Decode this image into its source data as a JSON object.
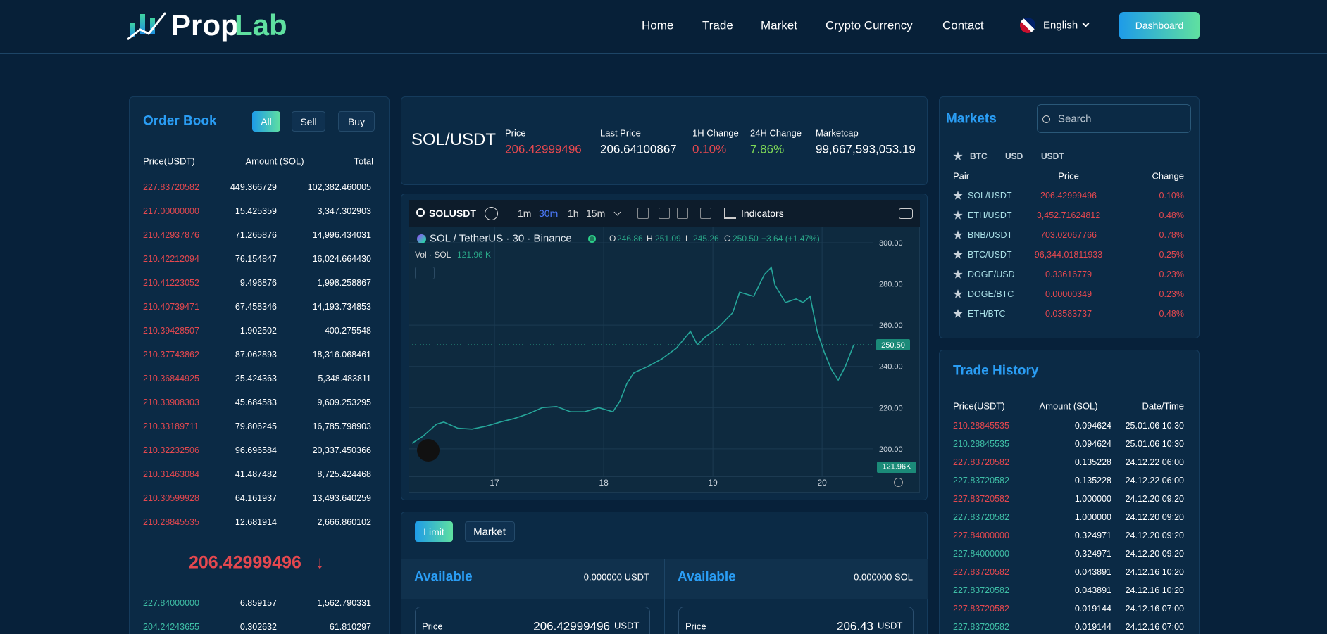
{
  "header": {
    "logo": [
      "Prop",
      "Lab"
    ],
    "nav": [
      "Home",
      "Trade",
      "Market",
      "Crypto Currency",
      "Contact"
    ],
    "language": "English",
    "button": "Dashboard"
  },
  "order_book": {
    "title": "Order Book",
    "filters": [
      "All",
      "Sell",
      "Buy"
    ],
    "columns": [
      "Price(USDT)",
      "Amount (SOL)",
      "Total"
    ],
    "asks": [
      [
        "227.83720582",
        "449.366729",
        "102,382.460005"
      ],
      [
        "217.00000000",
        "15.425359",
        "3,347.302903"
      ],
      [
        "210.42937876",
        "71.265876",
        "14,996.434031"
      ],
      [
        "210.42212094",
        "76.154847",
        "16,024.664430"
      ],
      [
        "210.41223052",
        "9.496876",
        "1,998.258867"
      ],
      [
        "210.40739471",
        "67.458346",
        "14,193.734853"
      ],
      [
        "210.39428507",
        "1.902502",
        "400.275548"
      ],
      [
        "210.37743862",
        "87.062893",
        "18,316.068461"
      ],
      [
        "210.36844925",
        "25.424363",
        "5,348.483811"
      ],
      [
        "210.33908303",
        "45.684583",
        "9,609.253295"
      ],
      [
        "210.33189711",
        "79.806245",
        "16,785.798903"
      ],
      [
        "210.32232506",
        "96.696584",
        "20,337.450366"
      ],
      [
        "210.31463084",
        "41.487482",
        "8,725.424468"
      ],
      [
        "210.30599928",
        "64.161937",
        "13,493.640259"
      ],
      [
        "210.28845535",
        "12.681914",
        "2,666.860102"
      ]
    ],
    "last_price": "206.42999496",
    "arrow": "↓",
    "bids": [
      [
        "227.84000000",
        "6.859157",
        "1,562.790331"
      ],
      [
        "204.24243655",
        "0.302632",
        "61.810297"
      ]
    ]
  },
  "ticker": {
    "pair": "SOL/USDT",
    "stats": [
      {
        "label": "Price",
        "value": "206.42999496",
        "color": "#e5484f"
      },
      {
        "label": "Last Price",
        "value": "206.64100867",
        "color": "#ffffff"
      },
      {
        "label": "1H Change",
        "value": "0.10%",
        "color": "#e5484f"
      },
      {
        "label": "24H Change",
        "value": "7.86%",
        "color": "#7ed957"
      },
      {
        "label": "Marketcap",
        "value": "99,667,593,053.19",
        "color": "#ffffff"
      }
    ]
  },
  "chart_widget": {
    "symbol": "SOLUSDT",
    "intervals": [
      "1m",
      "30m",
      "1h",
      "15m"
    ],
    "indicators": "Indicators",
    "legend": "SOL / TetherUS · 30 · Binance",
    "ohlc": [
      {
        "key": "O",
        "value": "246.86"
      },
      {
        "key": "H",
        "value": "251.09"
      },
      {
        "key": "L",
        "value": "245.26"
      },
      {
        "key": "C",
        "value": "250.50"
      }
    ],
    "change": "+3.64 (+1.47%)",
    "volume_label": "Vol · SOL",
    "volume_value": "121.96 K",
    "volume_tag": "121.96K"
  },
  "chart_data": {
    "type": "line",
    "color": "#26a69a",
    "grid": true,
    "x": [
      16.245,
      16.342,
      16.471,
      16.535,
      16.665,
      16.794,
      16.923,
      17.052,
      17.181,
      17.31,
      17.439,
      17.568,
      17.697,
      17.826,
      17.955,
      18.084,
      18.148,
      18.213,
      18.277,
      18.406,
      18.535,
      18.665,
      18.794,
      18.858,
      18.923,
      19.052,
      19.181,
      19.245,
      19.374,
      19.471,
      19.535,
      19.568,
      19.665,
      19.761,
      19.826,
      19.89,
      19.955,
      20.019,
      20.084,
      20.148,
      20.213,
      20.29
    ],
    "values": [
      202.7,
      206,
      212,
      213,
      210,
      209.6,
      211,
      213,
      214.7,
      217,
      220,
      220.5,
      218,
      218,
      220,
      218,
      223,
      231.7,
      236.9,
      240,
      243.7,
      248.8,
      257,
      250.5,
      254,
      259,
      266,
      276,
      274,
      284.6,
      288,
      279.5,
      271,
      272.7,
      271,
      274,
      257,
      247,
      238.6,
      233.4,
      240,
      250.5
    ],
    "xlim": [
      16.245,
      20.47
    ],
    "xticks": [
      17,
      18,
      19,
      20
    ],
    "ylim": [
      178.8,
      305.1
    ],
    "yticks": [
      {
        "value": 200,
        "label": "200.00"
      },
      {
        "value": 220,
        "label": "220.00"
      },
      {
        "value": 240,
        "label": "240.00"
      },
      {
        "value": 260,
        "label": "260.00"
      },
      {
        "value": 280,
        "label": "280.00"
      },
      {
        "value": 300,
        "label": "300.00"
      }
    ],
    "last_value": {
      "value": 250.5,
      "label": "250.50"
    }
  },
  "order_form": {
    "tabs": [
      "Limit",
      "Market"
    ],
    "sides": [
      {
        "title": "Available",
        "balance": "0.000000 USDT",
        "price_label": "Price",
        "price": "206.42999496",
        "unit": "USDT"
      },
      {
        "title": "Available",
        "balance": "0.000000 SOL",
        "price_label": "Price",
        "price": "206.43",
        "unit": "USDT"
      }
    ]
  },
  "markets": {
    "title": "Markets",
    "search": "Search",
    "filters": [
      "BTC",
      "USD",
      "USDT"
    ],
    "columns": [
      "Pair",
      "Price",
      "Change"
    ],
    "rows": [
      [
        "SOL/USDT",
        "206.42999496",
        "0.10%"
      ],
      [
        "ETH/USDT",
        "3,452.71624812",
        "0.48%"
      ],
      [
        "BNB/USDT",
        "703.02067766",
        "0.78%"
      ],
      [
        "BTC/USDT",
        "96,344.01811933",
        "0.25%"
      ],
      [
        "DOGE/USD",
        "0.33616779",
        "0.23%"
      ],
      [
        "DOGE/BTC",
        "0.00000349",
        "0.23%"
      ],
      [
        "ETH/BTC",
        "0.03583737",
        "0.48%"
      ]
    ]
  },
  "trade_history": {
    "title": "Trade History",
    "columns": [
      "Price(USDT)",
      "Amount (SOL)",
      "Date/Time"
    ],
    "rows": [
      [
        "210.28845535",
        "0.094624",
        "25.01.06 10:30"
      ],
      [
        "210.28845535",
        "0.094624",
        "25.01.06 10:30"
      ],
      [
        "227.83720582",
        "0.135228",
        "24.12.22 06:00"
      ],
      [
        "227.83720582",
        "0.135228",
        "24.12.22 06:00"
      ],
      [
        "227.83720582",
        "1.000000",
        "24.12.20 09:20"
      ],
      [
        "227.83720582",
        "1.000000",
        "24.12.20 09:20"
      ],
      [
        "227.84000000",
        "0.324971",
        "24.12.20 09:20"
      ],
      [
        "227.84000000",
        "0.324971",
        "24.12.20 09:20"
      ],
      [
        "227.83720582",
        "0.043891",
        "24.12.16 10:20"
      ],
      [
        "227.83720582",
        "0.043891",
        "24.12.16 10:20"
      ],
      [
        "227.83720582",
        "0.019144",
        "24.12.16 07:00"
      ],
      [
        "227.83720582",
        "0.019144",
        "24.12.16 07:00"
      ]
    ]
  }
}
